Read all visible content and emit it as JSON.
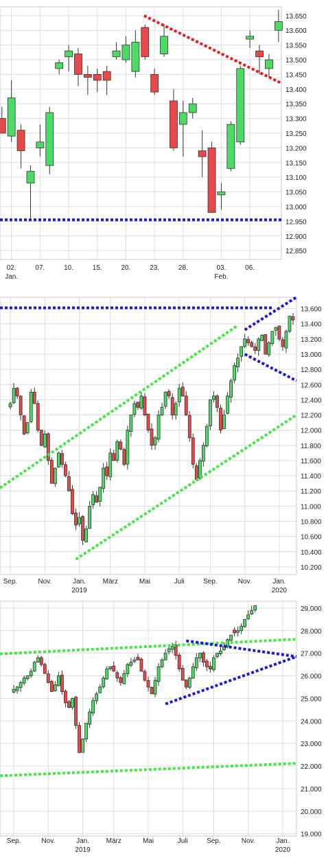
{
  "colors": {
    "up": "#4cd964",
    "down": "#e84848",
    "outline": "#333333",
    "grid": "#dcdcdc",
    "blue": "#1a1ad0",
    "green": "#45e645",
    "red": "#e02020"
  },
  "chart_data": [
    {
      "type": "candlestick",
      "title": "",
      "ylim": [
        12.82,
        13.68
      ],
      "grid": true,
      "x_ticks": [
        {
          "label": "02.",
          "sub": "Jan.",
          "x": 1
        },
        {
          "label": "07.",
          "x": 4
        },
        {
          "label": "10.",
          "x": 7
        },
        {
          "label": "15.",
          "x": 10
        },
        {
          "label": "20.",
          "x": 13
        },
        {
          "label": "23.",
          "x": 16
        },
        {
          "label": "28.",
          "x": 19
        },
        {
          "label": "03.",
          "sub": "Feb.",
          "x": 23
        },
        {
          "label": "06.",
          "x": 26
        }
      ],
      "xlim": [
        -0.2,
        29.3
      ],
      "y_ticks": [
        13.65,
        13.6,
        13.55,
        13.5,
        13.45,
        13.4,
        13.35,
        13.3,
        13.25,
        13.2,
        13.15,
        13.1,
        13.05,
        13.0,
        12.95,
        12.9,
        12.85
      ],
      "y_tick_labels": [
        "13.650",
        "13.600",
        "13.550",
        "13.500",
        "13.450",
        "13.400",
        "13.350",
        "13.300",
        "13.250",
        "13.200",
        "13.150",
        "13.100",
        "13.050",
        "13.000",
        "12.950",
        "12.900",
        "12.850"
      ],
      "candles": [
        {
          "x": 0,
          "o": 13.3,
          "h": 13.34,
          "l": 13.25,
          "c": 13.25
        },
        {
          "x": 1,
          "o": 13.24,
          "h": 13.43,
          "l": 13.22,
          "c": 13.37
        },
        {
          "x": 2,
          "o": 13.26,
          "h": 13.28,
          "l": 13.13,
          "c": 13.19
        },
        {
          "x": 3,
          "o": 13.08,
          "h": 13.14,
          "l": 12.96,
          "c": 13.12
        },
        {
          "x": 4,
          "o": 13.2,
          "h": 13.28,
          "l": 13.17,
          "c": 13.22
        },
        {
          "x": 5,
          "o": 13.14,
          "h": 13.34,
          "l": 13.11,
          "c": 13.32
        },
        {
          "x": 6,
          "o": 13.47,
          "h": 13.5,
          "l": 13.45,
          "c": 13.49
        },
        {
          "x": 7,
          "o": 13.51,
          "h": 13.55,
          "l": 13.46,
          "c": 13.53
        },
        {
          "x": 8,
          "o": 13.52,
          "h": 13.54,
          "l": 13.41,
          "c": 13.45
        },
        {
          "x": 9,
          "o": 13.45,
          "h": 13.48,
          "l": 13.38,
          "c": 13.44
        },
        {
          "x": 10,
          "o": 13.45,
          "h": 13.47,
          "l": 13.39,
          "c": 13.43
        },
        {
          "x": 11,
          "o": 13.46,
          "h": 13.48,
          "l": 13.38,
          "c": 13.43
        },
        {
          "x": 12,
          "o": 13.51,
          "h": 13.56,
          "l": 13.5,
          "c": 13.53
        },
        {
          "x": 13,
          "o": 13.5,
          "h": 13.58,
          "l": 13.49,
          "c": 13.55
        },
        {
          "x": 14,
          "o": 13.46,
          "h": 13.6,
          "l": 13.44,
          "c": 13.56
        },
        {
          "x": 15,
          "o": 13.61,
          "h": 13.62,
          "l": 13.5,
          "c": 13.51
        },
        {
          "x": 16,
          "o": 13.45,
          "h": 13.47,
          "l": 13.38,
          "c": 13.39
        },
        {
          "x": 17,
          "o": 13.52,
          "h": 13.62,
          "l": 13.51,
          "c": 13.58
        },
        {
          "x": 18,
          "o": 13.36,
          "h": 13.4,
          "l": 13.19,
          "c": 13.2
        },
        {
          "x": 19,
          "o": 13.28,
          "h": 13.36,
          "l": 13.17,
          "c": 13.32
        },
        {
          "x": 20,
          "o": 13.32,
          "h": 13.37,
          "l": 13.3,
          "c": 13.35
        },
        {
          "x": 21,
          "o": 13.19,
          "h": 13.26,
          "l": 13.1,
          "c": 13.17
        },
        {
          "x": 22,
          "o": 13.2,
          "h": 13.22,
          "l": 12.98,
          "c": 12.98
        },
        {
          "x": 23,
          "o": 13.04,
          "h": 13.08,
          "l": 12.99,
          "c": 13.05
        },
        {
          "x": 24,
          "o": 13.13,
          "h": 13.29,
          "l": 13.12,
          "c": 13.28
        },
        {
          "x": 25,
          "o": 13.22,
          "h": 13.48,
          "l": 13.21,
          "c": 13.47
        },
        {
          "x": 26,
          "o": 13.57,
          "h": 13.6,
          "l": 13.54,
          "c": 13.58
        },
        {
          "x": 27,
          "o": 13.53,
          "h": 13.55,
          "l": 13.45,
          "c": 13.51
        },
        {
          "x": 28,
          "o": 13.47,
          "h": 13.52,
          "l": 13.44,
          "c": 13.5
        },
        {
          "x": 29,
          "o": 13.6,
          "h": 13.67,
          "l": 13.56,
          "c": 13.63
        }
      ],
      "trendlines": [
        {
          "name": "",
          "color": "red",
          "from": [
            14.9,
            13.65
          ],
          "to": [
            29.3,
            13.42
          ]
        },
        {
          "name": "",
          "color": "blue",
          "from": [
            -0.2,
            12.955
          ],
          "to": [
            29.3,
            12.955
          ]
        }
      ]
    },
    {
      "type": "candlestick",
      "title": "",
      "ylim": [
        10.1,
        13.75
      ],
      "xlim": [
        -3,
        83
      ],
      "grid": true,
      "x_ticks": [
        {
          "label": "Sep.",
          "x": 0
        },
        {
          "label": "Nov.",
          "x": 10
        },
        {
          "label": "Jan.",
          "sub": "2019",
          "x": 20
        },
        {
          "label": "März",
          "x": 29
        },
        {
          "label": "Mai",
          "x": 39
        },
        {
          "label": "Juli",
          "x": 49
        },
        {
          "label": "Sep.",
          "x": 58
        },
        {
          "label": "Nov.",
          "x": 68
        },
        {
          "label": "Jan.",
          "sub": "2020",
          "x": 78
        }
      ],
      "y_ticks": [
        13.6,
        13.4,
        13.2,
        13.0,
        12.8,
        12.6,
        12.4,
        12.2,
        12.0,
        11.8,
        11.6,
        11.4,
        11.2,
        11.0,
        10.8,
        10.6,
        10.4,
        10.2
      ],
      "y_tick_labels": [
        "13.600",
        "13.400",
        "13.200",
        "13.000",
        "12.800",
        "12.600",
        "12.400",
        "12.200",
        "12.000",
        "11.800",
        "11.600",
        "11.400",
        "11.200",
        "11.000",
        "10.800",
        "10.600",
        "10.400",
        "10.200"
      ],
      "closes": [
        12.35,
        12.55,
        12.45,
        12.2,
        11.95,
        12.1,
        12.5,
        12.35,
        12.0,
        11.8,
        11.95,
        11.6,
        11.3,
        11.5,
        11.7,
        11.55,
        11.4,
        11.2,
        10.9,
        10.75,
        10.85,
        10.55,
        10.7,
        11.0,
        11.15,
        11.05,
        11.25,
        11.5,
        11.4,
        11.7,
        11.6,
        11.85,
        11.75,
        11.55,
        12.0,
        12.2,
        12.35,
        12.3,
        12.45,
        12.2,
        12.0,
        11.8,
        11.9,
        12.2,
        12.3,
        12.5,
        12.45,
        12.2,
        12.35,
        12.55,
        12.45,
        12.2,
        11.9,
        11.55,
        11.35,
        11.6,
        11.8,
        12.05,
        12.4,
        12.45,
        12.3,
        12.0,
        12.2,
        12.45,
        12.65,
        12.85,
        12.95,
        13.1,
        13.2,
        13.15,
        13.1,
        13.05,
        13.2,
        13.25,
        13.0,
        13.15,
        13.3,
        13.35,
        13.2,
        13.1,
        13.3,
        13.5,
        13.45
      ],
      "trendlines": [
        {
          "name": "",
          "color": "blue",
          "from": [
            -3,
            13.61
          ],
          "to": [
            76,
            13.61
          ]
        },
        {
          "name": "",
          "color": "blue",
          "from": [
            68,
            13.32
          ],
          "to": [
            83,
            13.75
          ]
        },
        {
          "name": "",
          "color": "blue",
          "from": [
            68,
            13.0
          ],
          "to": [
            83,
            12.65
          ]
        },
        {
          "name": "",
          "color": "green",
          "from": [
            -3,
            11.24
          ],
          "to": [
            66,
            13.38
          ]
        },
        {
          "name": "",
          "color": "green",
          "from": [
            19,
            10.3
          ],
          "to": [
            83,
            12.2
          ]
        }
      ]
    },
    {
      "type": "candlestick",
      "title": "",
      "ylim": [
        18.9,
        29.3
      ],
      "xlim": [
        -4,
        82
      ],
      "grid": true,
      "x_ticks": [
        {
          "label": "Sep.",
          "x": 0
        },
        {
          "label": "Nov.",
          "x": 10
        },
        {
          "label": "Jan.",
          "sub": "2019",
          "x": 20
        },
        {
          "label": "März",
          "x": 29
        },
        {
          "label": "Mai",
          "x": 39
        },
        {
          "label": "Juli",
          "x": 49
        },
        {
          "label": "Sep.",
          "x": 58
        },
        {
          "label": "Nov.",
          "x": 68
        },
        {
          "label": "Jan.",
          "sub": "2020",
          "x": 78
        }
      ],
      "y_ticks": [
        29.0,
        28.0,
        27.0,
        26.0,
        25.0,
        24.0,
        23.0,
        22.0,
        21.0,
        20.0,
        19.0
      ],
      "y_tick_labels": [
        "29.000",
        "28.000",
        "27.000",
        "26.000",
        "25.000",
        "24.000",
        "23.000",
        "22.000",
        "21.000",
        "20.000",
        "19.000"
      ],
      "closes": [
        25.4,
        25.5,
        25.7,
        25.9,
        26.0,
        26.2,
        26.6,
        26.8,
        26.5,
        26.1,
        25.7,
        25.3,
        25.6,
        26.0,
        25.3,
        24.8,
        24.6,
        25.0,
        23.8,
        22.6,
        23.2,
        23.9,
        24.4,
        24.9,
        25.2,
        25.5,
        25.9,
        26.3,
        26.4,
        26.2,
        25.9,
        25.7,
        26.1,
        26.5,
        26.6,
        26.7,
        26.7,
        26.2,
        25.8,
        25.5,
        25.2,
        25.8,
        26.4,
        26.7,
        27.0,
        27.2,
        27.3,
        26.9,
        26.3,
        25.8,
        25.5,
        25.9,
        26.4,
        26.8,
        27.0,
        26.6,
        26.4,
        26.3,
        26.8,
        27.0,
        27.1,
        27.3,
        27.6,
        27.8,
        27.9,
        28.0,
        28.2,
        28.5,
        28.7,
        28.9,
        29.1
      ],
      "trendlines": [
        {
          "name": "",
          "color": "green",
          "from": [
            -4,
            26.97
          ],
          "to": [
            82,
            27.62
          ]
        },
        {
          "name": "",
          "color": "green",
          "from": [
            -4,
            21.57
          ],
          "to": [
            82,
            22.12
          ]
        },
        {
          "name": "",
          "color": "blue",
          "from": [
            44,
            24.75
          ],
          "to": [
            82,
            26.85
          ]
        },
        {
          "name": "",
          "color": "blue",
          "from": [
            50,
            27.55
          ],
          "to": [
            82,
            26.85
          ]
        }
      ]
    }
  ]
}
